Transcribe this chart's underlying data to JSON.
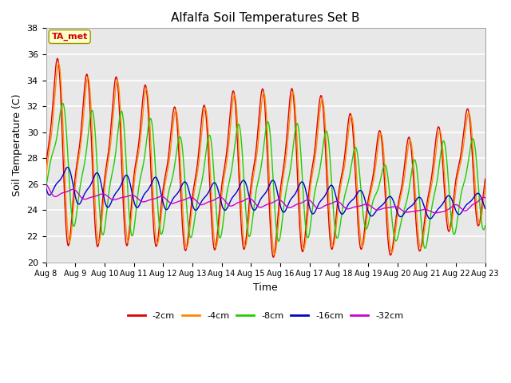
{
  "title": "Alfalfa Soil Temperatures Set B",
  "xlabel": "Time",
  "ylabel": "Soil Temperature (C)",
  "ylim": [
    20,
    38
  ],
  "xlim": [
    0,
    15
  ],
  "fig_bg_color": "#ffffff",
  "plot_bg_color": "#e8e8e8",
  "grid_color": "#ffffff",
  "colors": {
    "-2cm": "#dd0000",
    "-4cm": "#ff8800",
    "-8cm": "#22cc00",
    "-16cm": "#0000cc",
    "-32cm": "#cc00cc"
  },
  "legend_labels": [
    "-2cm",
    "-4cm",
    "-8cm",
    "-16cm",
    "-32cm"
  ],
  "annotation_text": "TA_met",
  "annotation_color": "#cc0000",
  "annotation_bg": "#ffffcc",
  "annotation_edge": "#999900",
  "tick_labels": [
    "Aug 8",
    "Aug 9",
    "Aug 10",
    "Aug 11",
    "Aug 12",
    "Aug 13",
    "Aug 14",
    "Aug 15",
    "Aug 16",
    "Aug 17",
    "Aug 18",
    "Aug 19",
    "Aug 20",
    "Aug 21",
    "Aug 22",
    "Aug 23"
  ],
  "peak_maxes_2cm": [
    36.3,
    34.7,
    34.1,
    34.5,
    32.3,
    31.4,
    33.1,
    33.3,
    33.4,
    33.3,
    32.1,
    30.4,
    29.7,
    29.5,
    31.8
  ],
  "trough_mins_2cm": [
    21.5,
    21.2,
    21.2,
    21.3,
    21.2,
    20.8,
    21.0,
    21.0,
    20.2,
    21.0,
    21.0,
    21.0,
    20.4,
    21.0,
    22.8
  ],
  "peak_maxes_4cm": [
    35.8,
    34.5,
    33.8,
    34.2,
    32.0,
    31.2,
    32.8,
    33.0,
    33.1,
    33.0,
    31.9,
    30.2,
    29.5,
    29.2,
    31.5
  ],
  "trough_mins_4cm": [
    21.8,
    21.5,
    21.5,
    21.6,
    21.4,
    21.0,
    21.2,
    21.2,
    20.4,
    21.2,
    21.2,
    21.2,
    20.6,
    21.2,
    23.0
  ],
  "peak_maxes_8cm": [
    32.5,
    31.8,
    31.5,
    31.8,
    29.9,
    29.3,
    30.5,
    30.8,
    30.8,
    30.5,
    29.5,
    27.8,
    27.0,
    29.2,
    29.5
  ],
  "trough_mins_8cm": [
    25.0,
    22.1,
    22.1,
    22.0,
    22.2,
    21.8,
    21.9,
    22.0,
    21.5,
    22.0,
    21.8,
    22.8,
    21.3,
    21.0,
    22.5
  ],
  "peak_maxes_16cm": [
    27.5,
    27.0,
    26.7,
    26.7,
    26.3,
    26.0,
    26.3,
    26.3,
    26.3,
    26.0,
    25.8,
    25.1,
    25.0,
    25.0,
    25.3
  ],
  "trough_mins_16cm": [
    25.0,
    24.3,
    24.2,
    24.2,
    24.0,
    24.0,
    24.0,
    24.0,
    23.8,
    23.7,
    23.7,
    23.5,
    23.5,
    23.3,
    23.8
  ],
  "peak_maxes_32cm": [
    25.8,
    25.3,
    25.2,
    25.1,
    25.0,
    25.0,
    25.0,
    24.8,
    24.8,
    24.8,
    24.5,
    24.4,
    24.1,
    24.0,
    25.0
  ],
  "trough_mins_32cm": [
    25.0,
    24.8,
    24.8,
    24.6,
    24.5,
    24.4,
    24.3,
    24.2,
    24.2,
    24.1,
    24.1,
    24.0,
    23.8,
    23.8,
    24.0
  ]
}
